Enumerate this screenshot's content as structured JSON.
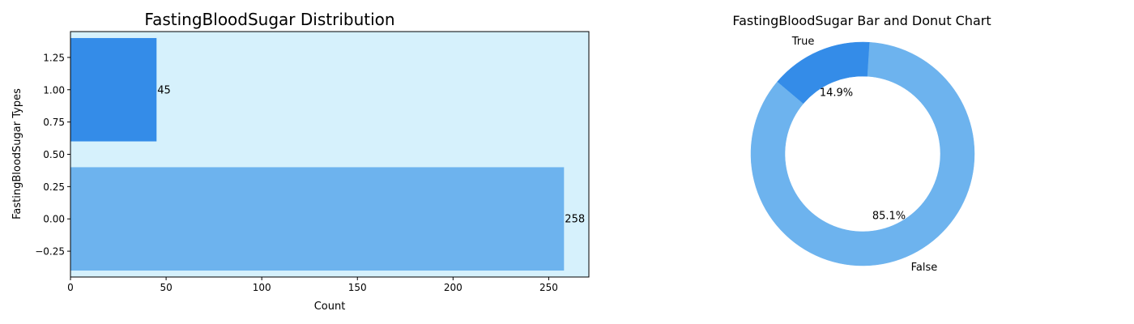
{
  "chart_data": [
    {
      "type": "bar",
      "orientation": "horizontal",
      "title": "FastingBloodSugar Distribution",
      "xlabel": "Count",
      "ylabel": "FastingBloodSugar Types",
      "categories": [
        0,
        1
      ],
      "values": [
        258,
        45
      ],
      "data_labels": [
        "258",
        "45"
      ],
      "colors": [
        "#6db3ee",
        "#348ce8"
      ],
      "xlim": [
        0,
        271
      ],
      "ylim": [
        -0.45,
        1.45
      ],
      "xticks": [
        0,
        50,
        100,
        150,
        200,
        250
      ],
      "yticks": [
        -0.25,
        0.0,
        0.25,
        0.5,
        0.75,
        1.0,
        1.25
      ],
      "xtick_labels": [
        "0",
        "50",
        "100",
        "150",
        "200",
        "250"
      ],
      "ytick_labels": [
        "−0.25",
        "0.00",
        "0.25",
        "0.50",
        "0.75",
        "1.00",
        "1.25"
      ],
      "background": "#d6f1fc",
      "grid": false
    },
    {
      "type": "pie",
      "style": "donut",
      "title": "FastingBloodSugar Bar and Donut Chart",
      "labels": [
        "True",
        "False"
      ],
      "values": [
        45,
        258
      ],
      "percent_labels": [
        "14.9%",
        "85.1%"
      ],
      "colors": [
        "#348ce8",
        "#6db3ee"
      ]
    }
  ]
}
